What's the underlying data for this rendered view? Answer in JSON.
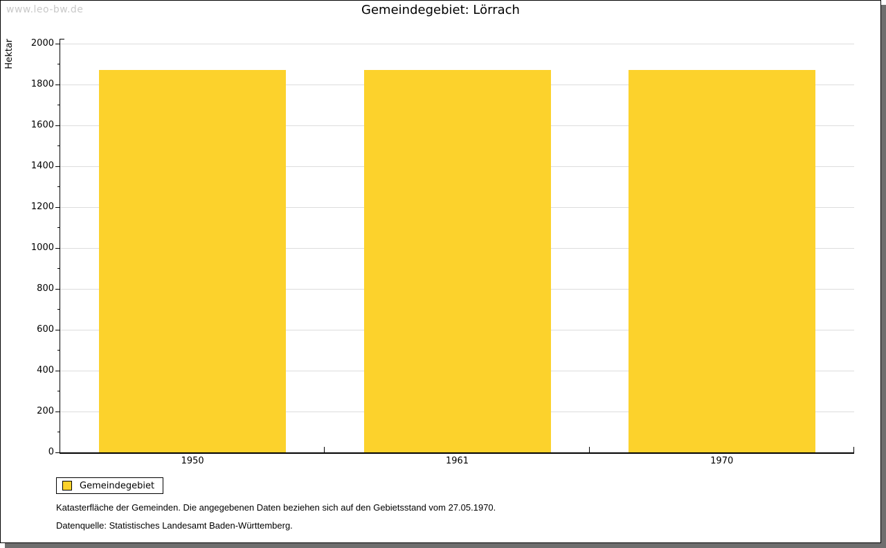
{
  "watermark": "www.leo-bw.de",
  "chart_data": {
    "type": "bar",
    "title": "Gemeindegebiet: Lörrach",
    "ylabel": "Hektar",
    "categories": [
      "1950",
      "1961",
      "1970"
    ],
    "series": [
      {
        "name": "Gemeindegebiet",
        "values": [
          1870,
          1870,
          1870
        ]
      }
    ],
    "ylim": [
      0,
      2000
    ],
    "ytick_step": 200,
    "ytick_minor_step": 100,
    "grid": true,
    "legend_position": "bottom-left",
    "bar_color": "#FCD22C",
    "grid_color": "#DCDCDC"
  },
  "legend": {
    "label": "Gemeindegebiet",
    "swatch_color": "#FCD22C"
  },
  "footnotes": [
    "Katasterfläche der Gemeinden. Die angegebenen Daten beziehen sich auf den Gebietsstand vom 27.05.1970.",
    "Datenquelle: Statistisches Landesamt Baden-Württemberg."
  ]
}
